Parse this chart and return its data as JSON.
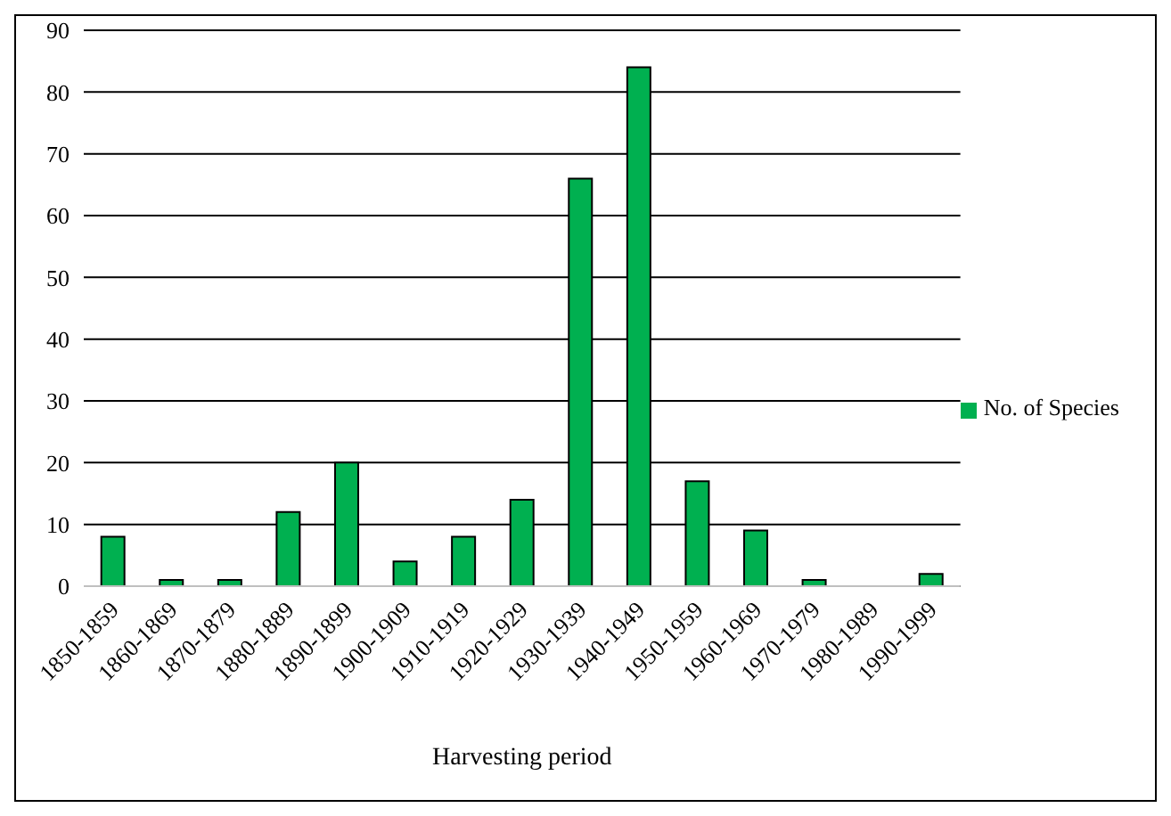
{
  "chart_data": {
    "type": "bar",
    "xlabel": "Harvesting period",
    "categories": [
      "1850-1859",
      "1860-1869",
      "1870-1879",
      "1880-1889",
      "1890-1899",
      "1900-1909",
      "1910-1919",
      "1920-1929",
      "1930-1939",
      "1940-1949",
      "1950-1959",
      "1960-1969",
      "1970-1979",
      "1980-1989",
      "1990-1999"
    ],
    "series": [
      {
        "name": "No. of Species",
        "color": "#00b050",
        "values": [
          8,
          1,
          1,
          12,
          20,
          4,
          8,
          14,
          66,
          84,
          17,
          9,
          1,
          0,
          2
        ]
      }
    ],
    "ylim": [
      0,
      90
    ],
    "yticks": [
      0,
      10,
      20,
      30,
      40,
      50,
      60,
      70,
      80,
      90
    ],
    "grid": "y",
    "legend": "right"
  }
}
